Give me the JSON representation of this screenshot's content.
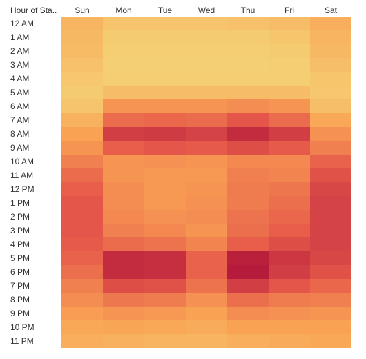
{
  "chart_data": {
    "type": "heatmap",
    "row_header": "Hour of Sta..",
    "columns": [
      "Sun",
      "Mon",
      "Tue",
      "Wed",
      "Thu",
      "Fri",
      "Sat"
    ],
    "rows": [
      "12 AM",
      "1 AM",
      "2 AM",
      "3 AM",
      "4 AM",
      "5 AM",
      "6 AM",
      "7 AM",
      "8 AM",
      "9 AM",
      "10 AM",
      "11 AM",
      "12 PM",
      "1 PM",
      "2 PM",
      "3 PM",
      "4 PM",
      "5 PM",
      "6 PM",
      "7 PM",
      "8 PM",
      "9 PM",
      "10 PM",
      "11 PM"
    ],
    "values": [
      [
        0.22,
        0.12,
        0.12,
        0.12,
        0.14,
        0.17,
        0.26
      ],
      [
        0.2,
        0.08,
        0.08,
        0.08,
        0.08,
        0.11,
        0.22
      ],
      [
        0.18,
        0.06,
        0.06,
        0.06,
        0.06,
        0.08,
        0.2
      ],
      [
        0.14,
        0.05,
        0.05,
        0.05,
        0.05,
        0.06,
        0.16
      ],
      [
        0.1,
        0.06,
        0.06,
        0.06,
        0.06,
        0.06,
        0.11
      ],
      [
        0.08,
        0.17,
        0.17,
        0.17,
        0.17,
        0.17,
        0.1
      ],
      [
        0.12,
        0.4,
        0.4,
        0.4,
        0.44,
        0.4,
        0.16
      ],
      [
        0.24,
        0.6,
        0.62,
        0.6,
        0.7,
        0.6,
        0.3
      ],
      [
        0.34,
        0.82,
        0.84,
        0.8,
        0.92,
        0.82,
        0.42
      ],
      [
        0.4,
        0.66,
        0.7,
        0.68,
        0.74,
        0.68,
        0.5
      ],
      [
        0.5,
        0.4,
        0.42,
        0.4,
        0.46,
        0.46,
        0.64
      ],
      [
        0.6,
        0.4,
        0.38,
        0.38,
        0.5,
        0.48,
        0.72
      ],
      [
        0.66,
        0.44,
        0.38,
        0.4,
        0.52,
        0.55,
        0.78
      ],
      [
        0.7,
        0.44,
        0.38,
        0.42,
        0.52,
        0.58,
        0.8
      ],
      [
        0.7,
        0.46,
        0.42,
        0.44,
        0.56,
        0.62,
        0.8
      ],
      [
        0.7,
        0.5,
        0.46,
        0.4,
        0.58,
        0.66,
        0.8
      ],
      [
        0.68,
        0.6,
        0.56,
        0.48,
        0.66,
        0.74,
        0.8
      ],
      [
        0.64,
        0.92,
        0.9,
        0.64,
        0.98,
        0.86,
        0.78
      ],
      [
        0.58,
        0.92,
        0.9,
        0.64,
        1.0,
        0.82,
        0.72
      ],
      [
        0.5,
        0.74,
        0.72,
        0.56,
        0.82,
        0.7,
        0.62
      ],
      [
        0.44,
        0.54,
        0.52,
        0.42,
        0.58,
        0.52,
        0.5
      ],
      [
        0.36,
        0.4,
        0.38,
        0.34,
        0.44,
        0.42,
        0.4
      ],
      [
        0.3,
        0.32,
        0.3,
        0.28,
        0.34,
        0.34,
        0.34
      ],
      [
        0.26,
        0.24,
        0.22,
        0.22,
        0.26,
        0.28,
        0.3
      ]
    ],
    "value_scale": "relative intensity (0 = low, 1 = high)",
    "color_scale": [
      "#f4d77a",
      "#f9a354",
      "#e85d4b",
      "#b71b3b"
    ],
    "legend": "none",
    "grid": false
  }
}
